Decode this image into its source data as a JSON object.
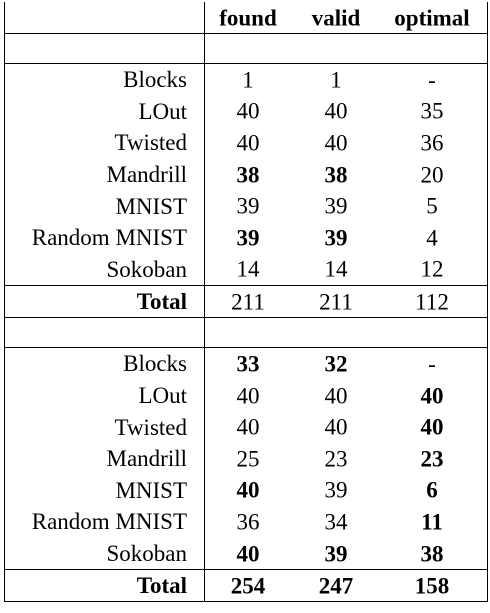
{
  "header": {
    "found": "found",
    "valid": "valid",
    "optimal": "optimal"
  },
  "section1": {
    "rows": [
      {
        "name": "Blocks",
        "found": "1",
        "valid": "1",
        "optimal": "-",
        "bold": [
          false,
          false,
          false
        ]
      },
      {
        "name": "LOut",
        "found": "40",
        "valid": "40",
        "optimal": "35",
        "bold": [
          false,
          false,
          false
        ]
      },
      {
        "name": "Twisted",
        "found": "40",
        "valid": "40",
        "optimal": "36",
        "bold": [
          false,
          false,
          false
        ]
      },
      {
        "name": "Mandrill",
        "found": "38",
        "valid": "38",
        "optimal": "20",
        "bold": [
          true,
          true,
          false
        ]
      },
      {
        "name": "MNIST",
        "found": "39",
        "valid": "39",
        "optimal": "5",
        "bold": [
          false,
          false,
          false
        ]
      },
      {
        "name": "Random MNIST",
        "found": "39",
        "valid": "39",
        "optimal": "4",
        "bold": [
          true,
          true,
          false
        ]
      },
      {
        "name": "Sokoban",
        "found": "14",
        "valid": "14",
        "optimal": "12",
        "bold": [
          false,
          false,
          false
        ]
      }
    ],
    "total": {
      "name": "Total",
      "found": "211",
      "valid": "211",
      "optimal": "112",
      "bold": [
        false,
        false,
        false
      ]
    }
  },
  "section2": {
    "rows": [
      {
        "name": "Blocks",
        "found": "33",
        "valid": "32",
        "optimal": "-",
        "bold": [
          true,
          true,
          false
        ]
      },
      {
        "name": "LOut",
        "found": "40",
        "valid": "40",
        "optimal": "40",
        "bold": [
          false,
          false,
          true
        ]
      },
      {
        "name": "Twisted",
        "found": "40",
        "valid": "40",
        "optimal": "40",
        "bold": [
          false,
          false,
          true
        ]
      },
      {
        "name": "Mandrill",
        "found": "25",
        "valid": "23",
        "optimal": "23",
        "bold": [
          false,
          false,
          true
        ]
      },
      {
        "name": "MNIST",
        "found": "40",
        "valid": "39",
        "optimal": "6",
        "bold": [
          true,
          false,
          true
        ]
      },
      {
        "name": "Random MNIST",
        "found": "36",
        "valid": "34",
        "optimal": "11",
        "bold": [
          false,
          false,
          true
        ]
      },
      {
        "name": "Sokoban",
        "found": "40",
        "valid": "39",
        "optimal": "38",
        "bold": [
          true,
          true,
          true
        ]
      }
    ],
    "total": {
      "name": "Total",
      "found": "254",
      "valid": "247",
      "optimal": "158",
      "bold": [
        true,
        true,
        true
      ]
    }
  }
}
